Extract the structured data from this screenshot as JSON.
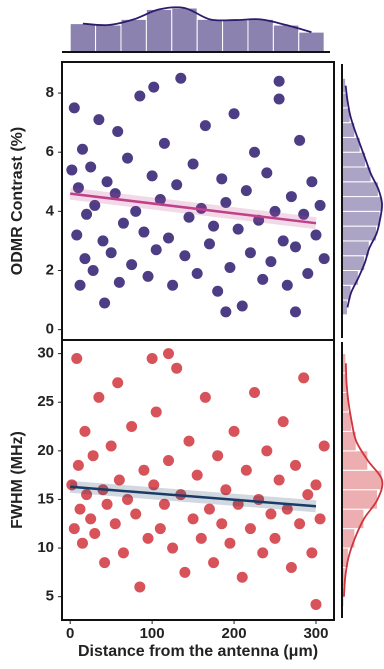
{
  "chart_data": [
    {
      "type": "scatter",
      "ylabel": "ODMR Contrast (%)",
      "color": "#2e1b6e",
      "trend_color": "#c0408a",
      "xlim": [
        -10,
        322
      ],
      "ylim": [
        -0.35,
        9.05
      ],
      "yticks": [
        0,
        2,
        4,
        6,
        8
      ],
      "x": [
        2,
        5,
        8,
        10,
        12,
        15,
        18,
        20,
        25,
        28,
        30,
        35,
        40,
        42,
        45,
        50,
        55,
        58,
        60,
        65,
        70,
        75,
        80,
        85,
        90,
        95,
        100,
        102,
        105,
        110,
        115,
        120,
        125,
        130,
        135,
        140,
        145,
        150,
        155,
        160,
        165,
        170,
        175,
        180,
        185,
        190,
        195,
        200,
        205,
        210,
        215,
        220,
        225,
        230,
        235,
        240,
        245,
        250,
        255,
        260,
        265,
        270,
        275,
        280,
        285,
        290,
        295,
        300,
        305,
        310,
        190,
        275,
        255
      ],
      "values": [
        5.4,
        7.5,
        3.2,
        4.8,
        1.5,
        6.1,
        2.4,
        3.9,
        5.5,
        2.0,
        4.2,
        7.1,
        3.0,
        0.9,
        5.0,
        2.6,
        4.6,
        6.7,
        1.6,
        3.6,
        5.8,
        2.2,
        4.0,
        7.9,
        3.3,
        1.8,
        5.2,
        8.2,
        2.7,
        4.4,
        6.3,
        3.1,
        1.5,
        4.9,
        8.5,
        2.5,
        3.8,
        5.6,
        1.9,
        4.1,
        6.9,
        2.9,
        3.5,
        1.3,
        5.1,
        4.3,
        2.1,
        7.3,
        3.4,
        0.8,
        4.7,
        2.6,
        6.0,
        3.7,
        1.7,
        5.3,
        2.3,
        4.0,
        7.8,
        3.0,
        1.5,
        4.5,
        2.8,
        6.4,
        3.9,
        1.9,
        5.0,
        3.2,
        4.2,
        2.4,
        0.6,
        0.6,
        8.4
      ],
      "trend": {
        "x": [
          0,
          300
        ],
        "y": [
          4.6,
          3.6
        ]
      }
    },
    {
      "type": "scatter",
      "ylabel": "FWHM (MHz)",
      "xlabel": "Distance from the antenna (μm)",
      "color": "#d0343c",
      "trend_color": "#1b3a66",
      "xlim": [
        -10,
        322
      ],
      "ylim": [
        2.6,
        31.4
      ],
      "yticks": [
        5,
        10,
        15,
        20,
        25,
        30
      ],
      "xticks": [
        0,
        100,
        200,
        300
      ],
      "x": [
        2,
        5,
        8,
        10,
        12,
        15,
        18,
        20,
        25,
        28,
        30,
        35,
        40,
        42,
        45,
        50,
        55,
        58,
        60,
        65,
        70,
        75,
        80,
        85,
        90,
        95,
        100,
        102,
        105,
        110,
        115,
        120,
        125,
        130,
        135,
        140,
        145,
        150,
        155,
        160,
        165,
        170,
        175,
        180,
        185,
        190,
        195,
        200,
        205,
        210,
        215,
        220,
        225,
        230,
        235,
        240,
        245,
        250,
        255,
        260,
        265,
        270,
        275,
        280,
        285,
        290,
        295,
        300,
        305,
        310,
        300,
        120
      ],
      "values": [
        16.5,
        12.0,
        29.5,
        18.5,
        14.0,
        10.5,
        22.0,
        15.5,
        13.0,
        19.5,
        11.5,
        25.5,
        16.0,
        8.5,
        14.5,
        20.5,
        12.5,
        27.0,
        17.0,
        9.5,
        15.0,
        22.5,
        13.5,
        6.0,
        18.0,
        11.0,
        29.5,
        16.5,
        24.0,
        12.0,
        14.5,
        19.0,
        10.0,
        28.5,
        15.5,
        7.5,
        21.0,
        13.0,
        17.5,
        11.0,
        25.5,
        14.0,
        8.5,
        19.5,
        12.5,
        16.0,
        10.5,
        22.0,
        14.5,
        7.0,
        18.0,
        12.0,
        26.0,
        15.0,
        9.5,
        20.0,
        13.5,
        11.0,
        17.0,
        23.0,
        14.0,
        8.0,
        18.5,
        12.5,
        27.5,
        15.5,
        9.5,
        16.5,
        13.0,
        20.5,
        4.2,
        30.0
      ],
      "trend": {
        "x": [
          0,
          300
        ],
        "y": [
          16.3,
          14.3
        ]
      }
    },
    {
      "type": "histogram",
      "color": "#2e1b6e",
      "bins": [
        0,
        31,
        62,
        93,
        124,
        155,
        186,
        217,
        248,
        279,
        310
      ],
      "counts": [
        40,
        38,
        46,
        60,
        62,
        46,
        45,
        46,
        38,
        28
      ]
    },
    {
      "type": "histogram",
      "color": "#2e1b6e",
      "bins": [
        0.5,
        1,
        1.5,
        2,
        2.5,
        3,
        3.5,
        4,
        4.5,
        5,
        5.5,
        6,
        6.5,
        7,
        7.5,
        8,
        8.5
      ],
      "counts": [
        6,
        10,
        18,
        25,
        30,
        38,
        42,
        44,
        40,
        32,
        26,
        20,
        14,
        9,
        6,
        4
      ]
    },
    {
      "type": "histogram",
      "color": "#d0343c",
      "bins": [
        4,
        6,
        8,
        10,
        12,
        14,
        16,
        18,
        20,
        22,
        24,
        26,
        28,
        30
      ],
      "counts": [
        3,
        5,
        10,
        20,
        34,
        55,
        62,
        40,
        22,
        15,
        10,
        7,
        6
      ]
    }
  ]
}
